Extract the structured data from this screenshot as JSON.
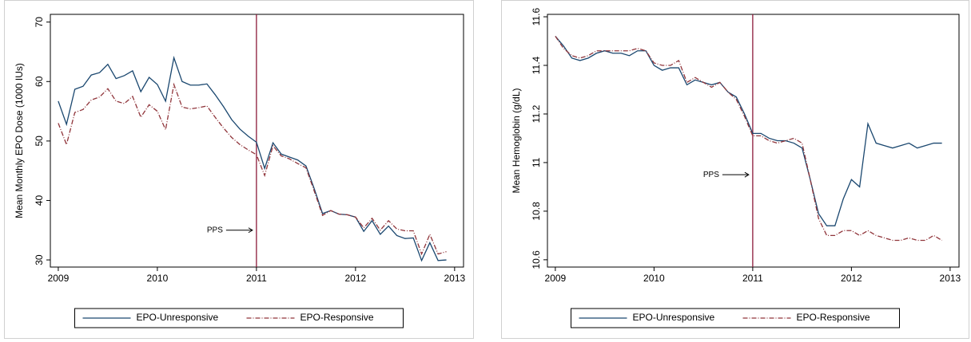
{
  "chart_data": [
    {
      "type": "line",
      "ylabel": "Mean Monthly EPO Dose (1000 IUs)",
      "x": [
        2009,
        2009.083,
        2009.167,
        2009.25,
        2009.333,
        2009.417,
        2009.5,
        2009.583,
        2009.667,
        2009.75,
        2009.833,
        2009.917,
        2010,
        2010.083,
        2010.167,
        2010.25,
        2010.333,
        2010.417,
        2010.5,
        2010.583,
        2010.667,
        2010.75,
        2010.833,
        2010.917,
        2011,
        2011.083,
        2011.167,
        2011.25,
        2011.333,
        2011.417,
        2011.5,
        2011.583,
        2011.667,
        2011.75,
        2011.833,
        2011.917,
        2012,
        2012.083,
        2012.167,
        2012.25,
        2012.333,
        2012.417,
        2012.5,
        2012.583,
        2012.667,
        2012.75,
        2012.833,
        2012.917
      ],
      "series": [
        {
          "name": "EPO-Unresponsive",
          "color": "#1a476f",
          "dash": "solid",
          "values": [
            56.7,
            52.8,
            58.7,
            59.2,
            61.1,
            61.5,
            62.9,
            60.5,
            61.0,
            61.8,
            58.3,
            60.7,
            59.5,
            56.7,
            64.0,
            60.0,
            59.4,
            59.4,
            59.6,
            57.8,
            55.8,
            53.6,
            52.0,
            50.8,
            49.8,
            45.4,
            49.7,
            47.8,
            47.3,
            46.8,
            45.8,
            42.0,
            37.8,
            38.3,
            37.7,
            37.6,
            37.2,
            34.8,
            36.6,
            34.3,
            35.7,
            34.1,
            33.6,
            33.7,
            29.9,
            32.9,
            29.9,
            30.0
          ]
        },
        {
          "name": "EPO-Responsive",
          "color": "#90353b",
          "dash": "dashdot",
          "values": [
            53.0,
            49.4,
            54.8,
            55.3,
            56.9,
            57.4,
            58.8,
            56.7,
            56.3,
            57.5,
            54.0,
            56.1,
            55.0,
            51.9,
            59.5,
            55.7,
            55.4,
            55.6,
            55.9,
            54.0,
            52.2,
            50.6,
            49.4,
            48.5,
            47.7,
            44.2,
            49.2,
            47.5,
            47.0,
            46.2,
            45.5,
            41.6,
            37.5,
            38.3,
            37.7,
            37.6,
            37.2,
            35.4,
            37.0,
            35.0,
            36.6,
            35.2,
            34.9,
            34.9,
            31.0,
            34.3,
            31.0,
            31.4
          ]
        }
      ],
      "xlim": [
        2008.92,
        2013.09
      ],
      "ylim": [
        28.8,
        71.3
      ],
      "xticks": [
        2009,
        2010,
        2011,
        2012,
        2013
      ],
      "yticks": [
        30,
        40,
        50,
        60,
        70
      ],
      "vline": {
        "x": 2011,
        "color": "#8b1a3a"
      },
      "annotation": {
        "text": "PPS",
        "y": 35
      }
    },
    {
      "type": "line",
      "ylabel": "Mean Hemoglobin (g/dL)",
      "x": [
        2009,
        2009.083,
        2009.167,
        2009.25,
        2009.333,
        2009.417,
        2009.5,
        2009.583,
        2009.667,
        2009.75,
        2009.833,
        2009.917,
        2010,
        2010.083,
        2010.167,
        2010.25,
        2010.333,
        2010.417,
        2010.5,
        2010.583,
        2010.667,
        2010.75,
        2010.833,
        2010.917,
        2011,
        2011.083,
        2011.167,
        2011.25,
        2011.333,
        2011.417,
        2011.5,
        2011.583,
        2011.667,
        2011.75,
        2011.833,
        2011.917,
        2012,
        2012.083,
        2012.167,
        2012.25,
        2012.333,
        2012.417,
        2012.5,
        2012.583,
        2012.667,
        2012.75,
        2012.833,
        2012.917
      ],
      "series": [
        {
          "name": "EPO-Unresponsive",
          "color": "#1a476f",
          "dash": "solid",
          "values": [
            11.52,
            11.48,
            11.43,
            11.42,
            11.43,
            11.45,
            11.46,
            11.45,
            11.45,
            11.44,
            11.46,
            11.46,
            11.4,
            11.38,
            11.39,
            11.39,
            11.32,
            11.34,
            11.33,
            11.32,
            11.33,
            11.29,
            11.27,
            11.2,
            11.12,
            11.12,
            11.1,
            11.09,
            11.09,
            11.08,
            11.06,
            10.93,
            10.79,
            10.74,
            10.74,
            10.85,
            10.93,
            10.9,
            11.16,
            11.08,
            11.07,
            11.06,
            11.07,
            11.08,
            11.06,
            11.07,
            11.08,
            11.08
          ]
        },
        {
          "name": "EPO-Responsive",
          "color": "#90353b",
          "dash": "dashdot",
          "values": [
            11.52,
            11.47,
            11.44,
            11.43,
            11.44,
            11.46,
            11.46,
            11.46,
            11.46,
            11.46,
            11.47,
            11.46,
            11.41,
            11.4,
            11.4,
            11.42,
            11.33,
            11.35,
            11.33,
            11.31,
            11.33,
            11.29,
            11.26,
            11.19,
            11.11,
            11.11,
            11.09,
            11.08,
            11.09,
            11.1,
            11.08,
            10.93,
            10.77,
            10.7,
            10.7,
            10.72,
            10.72,
            10.7,
            10.72,
            10.7,
            10.69,
            10.68,
            10.68,
            10.69,
            10.68,
            10.68,
            10.7,
            10.68
          ]
        }
      ],
      "xlim": [
        2008.92,
        2013.09
      ],
      "ylim": [
        10.57,
        11.61
      ],
      "xticks": [
        2009,
        2010,
        2011,
        2012,
        2013
      ],
      "yticks": [
        10.6,
        10.8,
        11,
        11.2,
        11.4,
        11.6
      ],
      "vline": {
        "x": 2011,
        "color": "#8b1a3a"
      },
      "annotation": {
        "text": "PPS",
        "y": 10.95
      }
    }
  ]
}
